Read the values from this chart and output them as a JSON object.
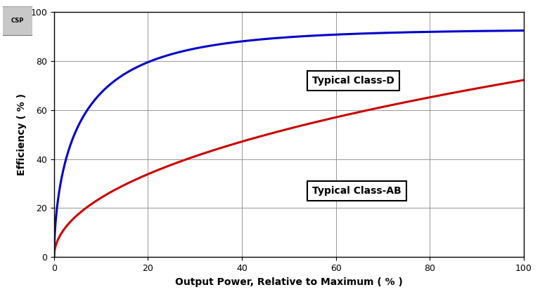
{
  "xlabel": "Output Power, Relative to Maximum ( % )",
  "ylabel": "Efficiency ( % )",
  "xlim": [
    0,
    100
  ],
  "ylim": [
    0,
    100
  ],
  "xticks": [
    0,
    20,
    40,
    60,
    80,
    100
  ],
  "yticks": [
    0,
    20,
    40,
    60,
    80,
    100
  ],
  "class_d_color": "#0000cc",
  "class_ab_color": "#cc0000",
  "class_d_label": "Typical Class-D",
  "class_ab_label": "Typical Class-AB",
  "background_color": "#ffffff",
  "grid_color": "#888888",
  "line_width": 2.2,
  "annotation_fontsize": 10,
  "axis_label_fontsize": 10,
  "tick_fontsize": 9,
  "class_d_ann_x": 55,
  "class_d_ann_y": 72,
  "class_ab_ann_x": 55,
  "class_ab_ann_y": 27,
  "csp_logo_text": "CSP"
}
